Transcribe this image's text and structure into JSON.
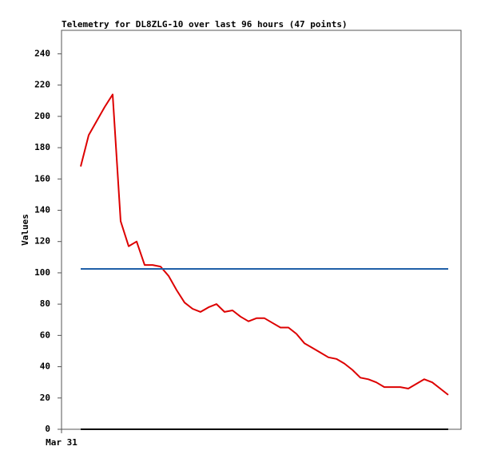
{
  "chart_data": {
    "type": "line",
    "title": "Telemetry for DL8ZLG-10 over last 96 hours (47 points)",
    "y_label": "Values",
    "ylim": [
      0,
      255
    ],
    "yticks": [
      0,
      20,
      40,
      60,
      80,
      100,
      120,
      140,
      160,
      180,
      200,
      220,
      240
    ],
    "xlim": [
      -2.4,
      47.6
    ],
    "xticks": [
      {
        "value": -2.4,
        "label": "Mar 31"
      }
    ],
    "series": [
      {
        "color": "#dd0000",
        "values": [
          168,
          188,
          197,
          206,
          214,
          133,
          117,
          120,
          105,
          105,
          104,
          98,
          89,
          81,
          77,
          75,
          78,
          80,
          75,
          76,
          72,
          69,
          71,
          71,
          68,
          65,
          65,
          61,
          55,
          52,
          49,
          46,
          45,
          42,
          38,
          33,
          32,
          30,
          27,
          27,
          27,
          26,
          29,
          32,
          30,
          26,
          22
        ]
      },
      {
        "color": "#1f5fa8",
        "values": [
          102.5,
          102.5,
          102.5,
          102.5,
          102.5,
          102.5,
          102.5,
          102.5,
          102.5,
          102.5,
          102.5,
          102.5,
          102.5,
          102.5,
          102.5,
          102.5,
          102.5,
          102.5,
          102.5,
          102.5,
          102.5,
          102.5,
          102.5,
          102.5,
          102.5,
          102.5,
          102.5,
          102.5,
          102.5,
          102.5,
          102.5,
          102.5,
          102.5,
          102.5,
          102.5,
          102.5,
          102.5,
          102.5,
          102.5,
          102.5,
          102.5,
          102.5,
          102.5,
          102.5,
          102.5,
          102.5,
          102.5
        ]
      },
      {
        "color": "#000000",
        "values": [
          0,
          0,
          0,
          0,
          0,
          0,
          0,
          0,
          0,
          0,
          0,
          0,
          0,
          0,
          0,
          0,
          0,
          0,
          0,
          0,
          0,
          0,
          0,
          0,
          0,
          0,
          0,
          0,
          0,
          0,
          0,
          0,
          0,
          0,
          0,
          0,
          0,
          0,
          0,
          0,
          0,
          0,
          0,
          0,
          0,
          0,
          0
        ]
      }
    ]
  }
}
